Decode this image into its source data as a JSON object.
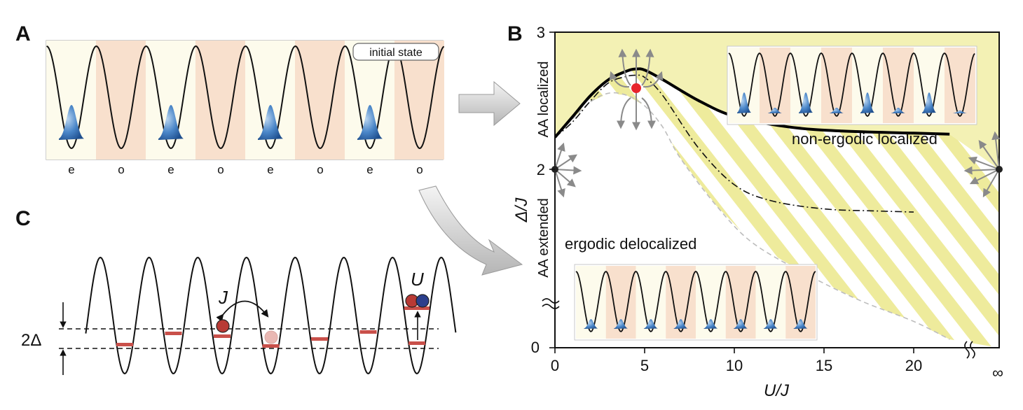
{
  "panels": {
    "A": {
      "label": "A",
      "badge": "initial state",
      "site_labels": [
        "e",
        "o",
        "e",
        "o",
        "e",
        "o",
        "e",
        "o"
      ]
    },
    "B": {
      "label": "B",
      "y_axis_label": "Δ/J",
      "x_axis_label": "U/J",
      "y_ticks": [
        "0",
        "2",
        "3"
      ],
      "x_ticks": [
        "0",
        "5",
        "10",
        "15",
        "20",
        "∞"
      ],
      "side_labels": {
        "upper": "AA localized",
        "lower": "AA extended"
      },
      "regions": {
        "top": "non-ergodic localized",
        "bottom": "ergodic delocalized"
      }
    },
    "C": {
      "label": "C",
      "hopping": "J",
      "interaction": "U",
      "gap": "2Δ"
    }
  },
  "colors": {
    "well_light": "#fdfbec",
    "well_orange": "#f8e0cd",
    "localized_fill": "#f3f1b4",
    "stripe": "#eeeb9c",
    "atom_blue": "#4a86c8",
    "level_red": "#c9504a",
    "atom_red": "#b83a35",
    "atom_navy": "#2b3f8c",
    "critical_point": "#e8242c"
  },
  "chart_data": {
    "type": "line",
    "xlabel": "U/J",
    "ylabel": "Δ/J",
    "xlim": [
      0,
      20
    ],
    "ylim": [
      0,
      3
    ],
    "series": [
      {
        "x": [
          0,
          1,
          2,
          3,
          4,
          4.5,
          5,
          6,
          8,
          10,
          13,
          16,
          20,
          22
        ],
        "values": [
          2.0,
          2.2,
          2.4,
          2.55,
          2.63,
          2.65,
          2.64,
          2.55,
          2.35,
          2.2,
          2.1,
          2.06,
          2.04,
          2.03
        ]
      },
      {
        "x": [
          0,
          1,
          2,
          3,
          4,
          4.5,
          5,
          6,
          8,
          10,
          12,
          15,
          18,
          20
        ],
        "values": [
          2.0,
          2.15,
          2.35,
          2.52,
          2.58,
          2.59,
          2.57,
          2.4,
          1.9,
          1.55,
          1.4,
          1.32,
          1.3,
          1.29
        ]
      },
      {
        "x": [
          0,
          1,
          2,
          3,
          4,
          5,
          6,
          7,
          9,
          11,
          14,
          17,
          20,
          22
        ],
        "values": [
          2.0,
          2.18,
          2.34,
          2.42,
          2.4,
          2.3,
          2.1,
          1.8,
          1.35,
          1.0,
          0.7,
          0.45,
          0.25,
          0.08
        ]
      }
    ]
  }
}
